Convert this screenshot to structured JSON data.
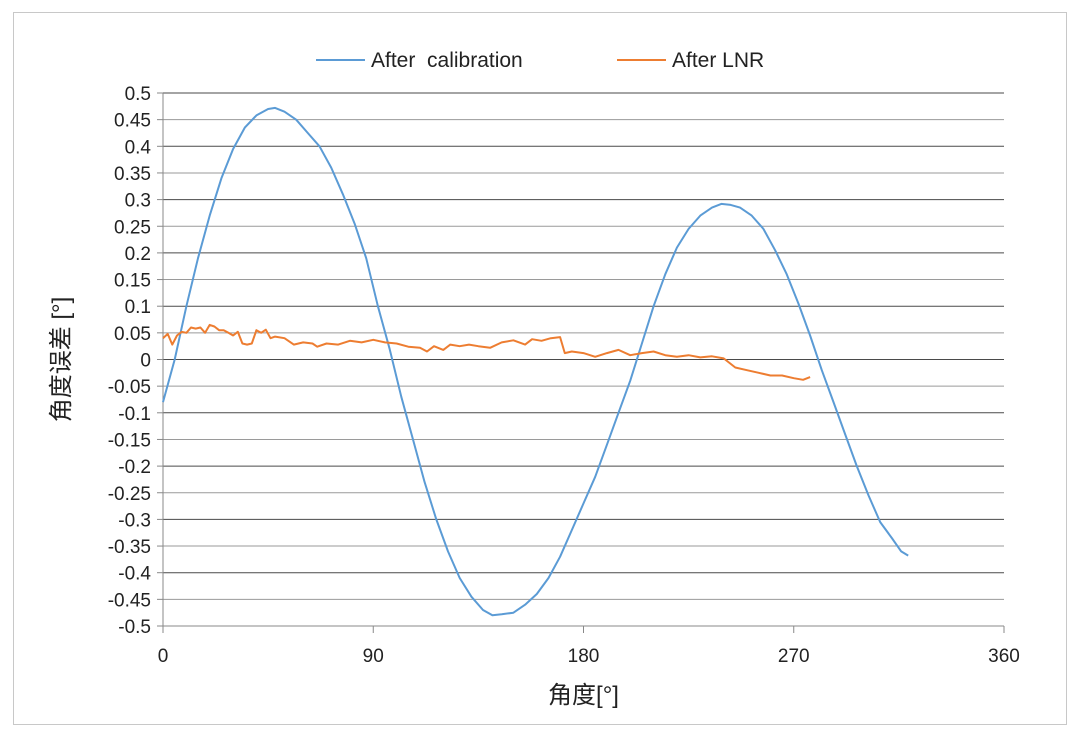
{
  "chart_data": {
    "type": "line",
    "title": "",
    "xlabel": "角度[°]",
    "ylabel": "角度误差 [°]",
    "xlim": [
      0,
      360
    ],
    "ylim": [
      -0.5,
      0.5
    ],
    "x_ticks": [
      0,
      90,
      180,
      270,
      360
    ],
    "y_ticks": [
      0.5,
      0.45,
      0.4,
      0.35,
      0.3,
      0.25,
      0.2,
      0.15,
      0.1,
      0.05,
      0,
      -0.05,
      -0.1,
      -0.15,
      -0.2,
      -0.25,
      -0.3,
      -0.35,
      -0.4,
      -0.45,
      -0.5
    ],
    "grid": "horizontal",
    "legend_position": "top-center",
    "series": [
      {
        "name": "After  calibration",
        "color": "#5b9bd5",
        "points": [
          [
            0,
            -0.08
          ],
          [
            5,
            0.0
          ],
          [
            10,
            0.1
          ],
          [
            15,
            0.19
          ],
          [
            20,
            0.27
          ],
          [
            25,
            0.34
          ],
          [
            30,
            0.395
          ],
          [
            35,
            0.435
          ],
          [
            40,
            0.458
          ],
          [
            45,
            0.47
          ],
          [
            48,
            0.472
          ],
          [
            52,
            0.465
          ],
          [
            57,
            0.45
          ],
          [
            62,
            0.425
          ],
          [
            67,
            0.4
          ],
          [
            72,
            0.36
          ],
          [
            77,
            0.31
          ],
          [
            82,
            0.255
          ],
          [
            87,
            0.19
          ],
          [
            92,
            0.1
          ],
          [
            97,
            0.02
          ],
          [
            102,
            -0.07
          ],
          [
            107,
            -0.15
          ],
          [
            112,
            -0.23
          ],
          [
            117,
            -0.3
          ],
          [
            122,
            -0.36
          ],
          [
            127,
            -0.41
          ],
          [
            132,
            -0.445
          ],
          [
            137,
            -0.47
          ],
          [
            141,
            -0.48
          ],
          [
            145,
            -0.478
          ],
          [
            150,
            -0.475
          ],
          [
            155,
            -0.46
          ],
          [
            160,
            -0.44
          ],
          [
            165,
            -0.41
          ],
          [
            170,
            -0.37
          ],
          [
            175,
            -0.32
          ],
          [
            180,
            -0.27
          ],
          [
            185,
            -0.22
          ],
          [
            190,
            -0.16
          ],
          [
            195,
            -0.1
          ],
          [
            200,
            -0.04
          ],
          [
            205,
            0.03
          ],
          [
            210,
            0.1
          ],
          [
            215,
            0.16
          ],
          [
            220,
            0.21
          ],
          [
            225,
            0.245
          ],
          [
            230,
            0.27
          ],
          [
            235,
            0.285
          ],
          [
            239,
            0.292
          ],
          [
            243,
            0.29
          ],
          [
            247,
            0.285
          ],
          [
            252,
            0.27
          ],
          [
            257,
            0.245
          ],
          [
            262,
            0.205
          ],
          [
            267,
            0.16
          ],
          [
            272,
            0.105
          ],
          [
            277,
            0.045
          ],
          [
            282,
            -0.02
          ],
          [
            287,
            -0.08
          ],
          [
            292,
            -0.14
          ],
          [
            297,
            -0.2
          ],
          [
            302,
            -0.255
          ],
          [
            307,
            -0.305
          ],
          [
            312,
            -0.335
          ],
          [
            316,
            -0.36
          ],
          [
            319,
            -0.368
          ]
        ]
      },
      {
        "name": "After LNR",
        "color": "#ed7d31",
        "points": [
          [
            0,
            0.04
          ],
          [
            2,
            0.048
          ],
          [
            4,
            0.028
          ],
          [
            6,
            0.045
          ],
          [
            8,
            0.052
          ],
          [
            10,
            0.05
          ],
          [
            12,
            0.06
          ],
          [
            14,
            0.058
          ],
          [
            16,
            0.06
          ],
          [
            18,
            0.05
          ],
          [
            20,
            0.065
          ],
          [
            22,
            0.062
          ],
          [
            24,
            0.055
          ],
          [
            26,
            0.055
          ],
          [
            28,
            0.05
          ],
          [
            30,
            0.045
          ],
          [
            32,
            0.052
          ],
          [
            34,
            0.03
          ],
          [
            36,
            0.028
          ],
          [
            38,
            0.03
          ],
          [
            40,
            0.055
          ],
          [
            42,
            0.05
          ],
          [
            44,
            0.056
          ],
          [
            46,
            0.04
          ],
          [
            48,
            0.043
          ],
          [
            52,
            0.04
          ],
          [
            56,
            0.028
          ],
          [
            60,
            0.032
          ],
          [
            64,
            0.03
          ],
          [
            66,
            0.024
          ],
          [
            70,
            0.03
          ],
          [
            75,
            0.028
          ],
          [
            80,
            0.035
          ],
          [
            85,
            0.032
          ],
          [
            90,
            0.037
          ],
          [
            95,
            0.032
          ],
          [
            100,
            0.03
          ],
          [
            105,
            0.024
          ],
          [
            110,
            0.022
          ],
          [
            113,
            0.015
          ],
          [
            116,
            0.025
          ],
          [
            120,
            0.018
          ],
          [
            123,
            0.028
          ],
          [
            127,
            0.025
          ],
          [
            131,
            0.028
          ],
          [
            135,
            0.025
          ],
          [
            140,
            0.022
          ],
          [
            145,
            0.032
          ],
          [
            150,
            0.036
          ],
          [
            155,
            0.028
          ],
          [
            158,
            0.038
          ],
          [
            162,
            0.035
          ],
          [
            166,
            0.04
          ],
          [
            170,
            0.042
          ],
          [
            172,
            0.012
          ],
          [
            175,
            0.015
          ],
          [
            180,
            0.012
          ],
          [
            185,
            0.005
          ],
          [
            190,
            0.012
          ],
          [
            195,
            0.018
          ],
          [
            200,
            0.008
          ],
          [
            205,
            0.012
          ],
          [
            210,
            0.015
          ],
          [
            215,
            0.008
          ],
          [
            220,
            0.005
          ],
          [
            225,
            0.008
          ],
          [
            230,
            0.004
          ],
          [
            235,
            0.006
          ],
          [
            240,
            0.002
          ],
          [
            245,
            -0.015
          ],
          [
            250,
            -0.02
          ],
          [
            255,
            -0.025
          ],
          [
            260,
            -0.03
          ],
          [
            265,
            -0.03
          ],
          [
            270,
            -0.035
          ],
          [
            274,
            -0.038
          ],
          [
            277,
            -0.033
          ]
        ]
      }
    ]
  }
}
